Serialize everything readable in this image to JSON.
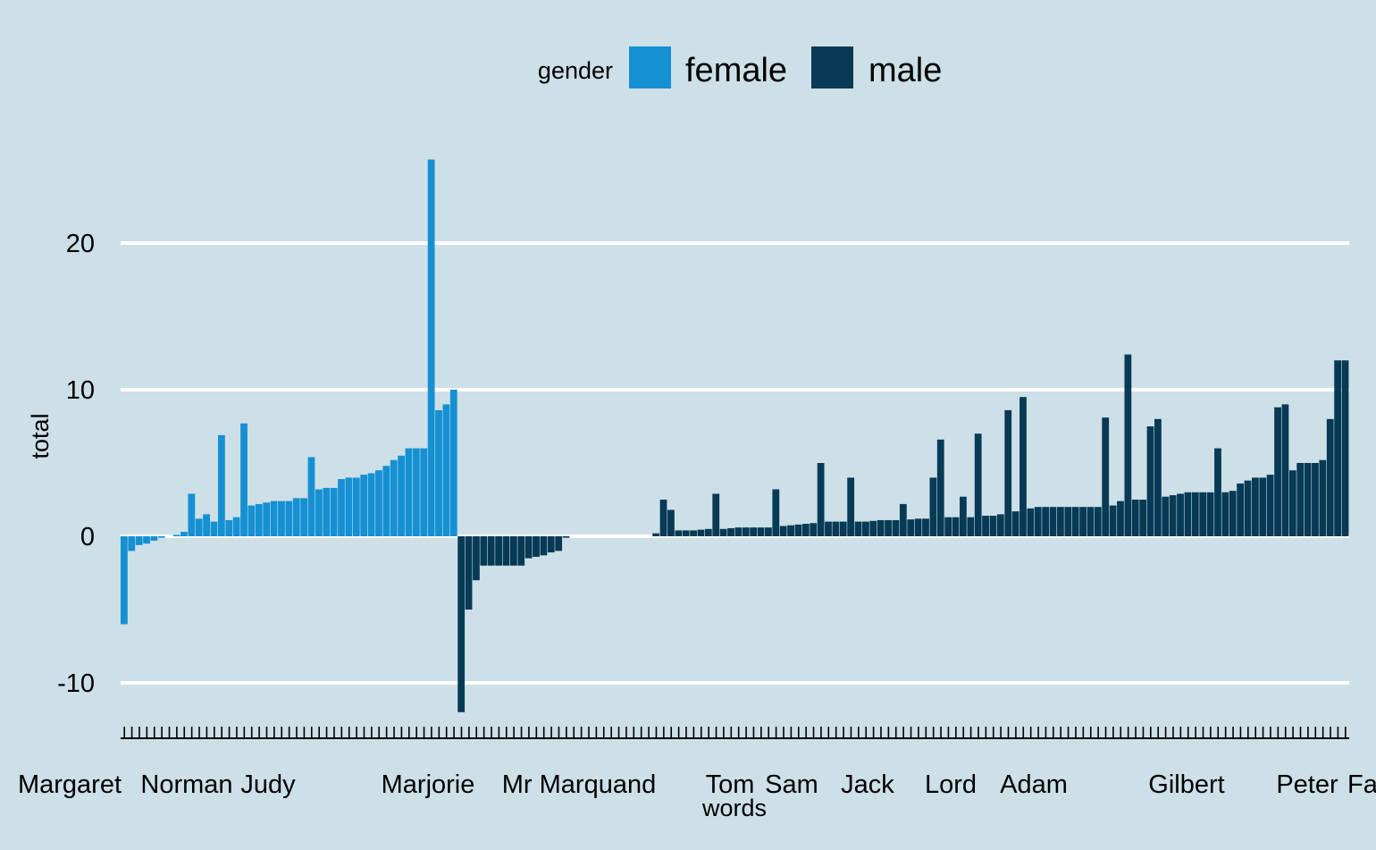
{
  "chart_data": {
    "type": "bar",
    "xlabel": "words",
    "ylabel": "total",
    "ylim": [
      -13,
      26
    ],
    "y_ticks": [
      -10,
      0,
      10,
      20
    ],
    "grid": true,
    "legend": {
      "title": "gender",
      "placement": "top",
      "entries": [
        {
          "name": "female",
          "color": "#1590d2"
        },
        {
          "name": "male",
          "color": "#073a54"
        }
      ]
    },
    "x_tick_labels": [
      "Margaret",
      "Norman",
      "Judy",
      "Marjorie",
      "Mr Marquand",
      "Tom",
      "Sam",
      "Jack",
      "Lord",
      "Adam",
      "Gilbert",
      "Peter",
      "Fa"
    ],
    "series": [
      {
        "name": "female",
        "color": "#1590d2",
        "values": [
          -6,
          -1,
          -0.6,
          -0.5,
          -0.3,
          -0.1,
          0,
          0.1,
          0.3,
          2.9,
          1.2,
          1.5,
          1,
          6.9,
          1.1,
          1.3,
          7.7,
          2.1,
          2.2,
          2.3,
          2.4,
          2.4,
          2.4,
          2.6,
          2.6,
          5.4,
          3.2,
          3.3,
          3.3,
          3.9,
          4,
          4,
          4.2,
          4.3,
          4.5,
          4.8,
          5.2,
          5.5,
          6,
          6,
          6,
          25.7,
          8.6,
          9,
          10
        ]
      },
      {
        "name": "male",
        "color": "#073a54",
        "values": [
          -12,
          -5,
          -3,
          -2,
          -2,
          -2,
          -2,
          -2,
          -2,
          -1.5,
          -1.4,
          -1.3,
          -1.1,
          -1,
          -0.1,
          0,
          0,
          0,
          0,
          0,
          0,
          0,
          0,
          0,
          0,
          0,
          0.2,
          2.5,
          1.8,
          0.4,
          0.4,
          0.4,
          0.45,
          0.5,
          2.9,
          0.5,
          0.55,
          0.6,
          0.6,
          0.6,
          0.6,
          0.6,
          3.2,
          0.7,
          0.75,
          0.8,
          0.85,
          0.9,
          5,
          1,
          1,
          1,
          4,
          1,
          1,
          1.05,
          1.1,
          1.1,
          1.1,
          2.2,
          1.15,
          1.2,
          1.2,
          4,
          6.6,
          1.3,
          1.3,
          2.7,
          1.3,
          7,
          1.4,
          1.4,
          1.5,
          8.6,
          1.7,
          9.5,
          1.9,
          2,
          2,
          2,
          2,
          2,
          2,
          2,
          2,
          2,
          8.1,
          2.1,
          2.4,
          12.4,
          2.5,
          2.5,
          7.5,
          8,
          2.7,
          2.8,
          2.9,
          3,
          3,
          3,
          3,
          6,
          3,
          3.1,
          3.6,
          3.8,
          4,
          4,
          4.2,
          8.8,
          9,
          4.5,
          5,
          5,
          5,
          5.2,
          8,
          12,
          12
        ]
      }
    ]
  }
}
